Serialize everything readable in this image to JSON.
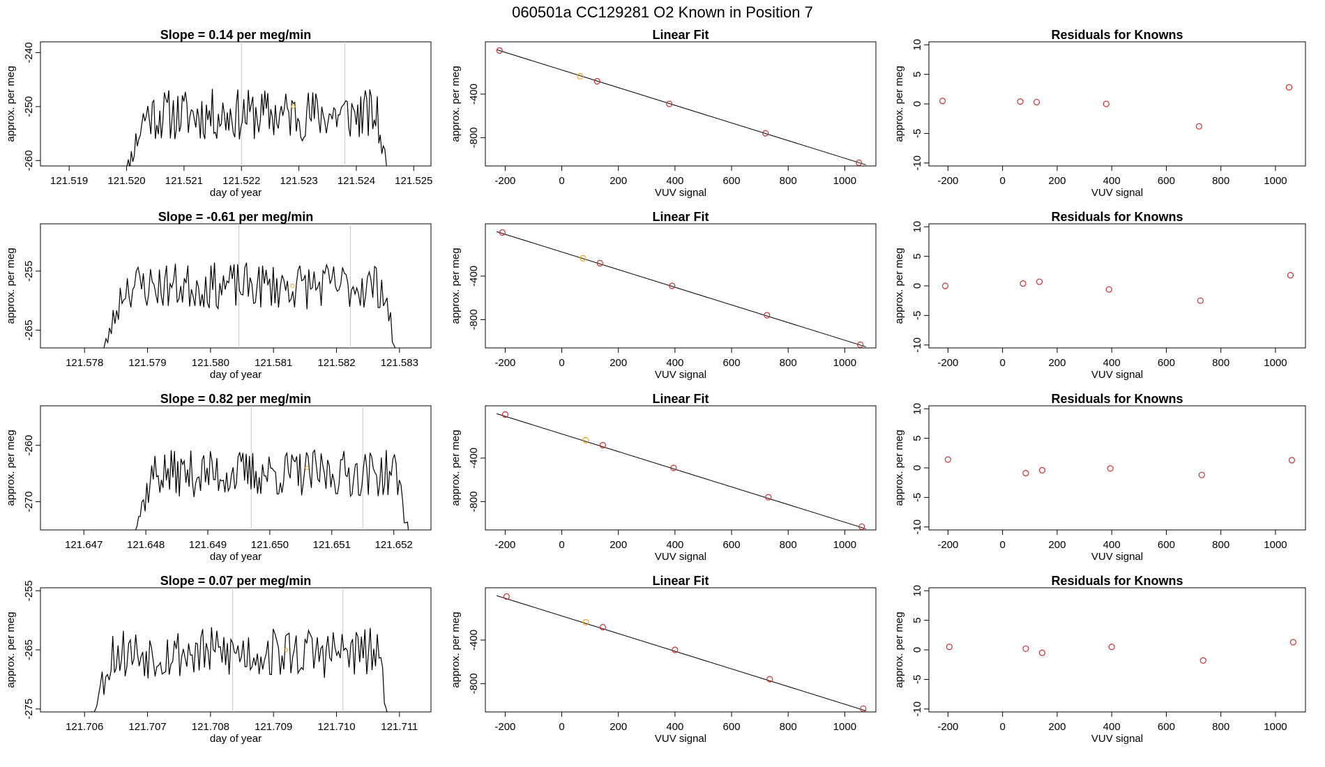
{
  "figure": {
    "title": "060501a      CC129281   O2 Known in Position  7",
    "colors": {
      "line": "#000000",
      "vline": "#c8c8c8",
      "highlight": "#f0a020",
      "residual": "#d03030",
      "frame": "#000000"
    }
  },
  "rows": [
    {
      "time": {
        "title": "Slope =  0.14  per meg/min",
        "xlabel": "day of year",
        "ylabel": "approx. per meg",
        "xlim": [
          121.5185,
          121.5253
        ],
        "ylim": [
          -261,
          -238
        ],
        "xticks": [
          121.519,
          121.52,
          121.521,
          121.522,
          121.523,
          121.524,
          121.525
        ],
        "xtick_labels": [
          "121.519",
          "121.520",
          "121.521",
          "121.522",
          "121.523",
          "121.524",
          "121.525"
        ],
        "yticks": [
          -240,
          -250,
          -260
        ],
        "ytick_labels": [
          "-240",
          "-250",
          "-260"
        ],
        "start": 121.5199,
        "end": 121.5246,
        "base": -251.5,
        "vlines": [
          121.522,
          121.5238
        ],
        "highlight": {
          "x": 121.5229,
          "y": -250
        },
        "seed": 11,
        "amp": 2.2,
        "n": 180
      },
      "fit": {
        "title": "Linear Fit",
        "xlabel": "VUV signal",
        "ylabel": "approx. per meg",
        "xlim": [
          -270,
          1110
        ],
        "ylim": [
          -1060,
          80
        ],
        "xticks": [
          -200,
          0,
          200,
          400,
          600,
          800,
          1000
        ],
        "xtick_labels": [
          "-200",
          "0",
          "200",
          "400",
          "600",
          "800",
          "1000"
        ],
        "yticks": [
          -400,
          -800
        ],
        "ytick_labels": [
          "-400",
          "-800"
        ],
        "points": [
          {
            "x": -220,
            "y": 0
          },
          {
            "x": 65,
            "y": -236
          },
          {
            "x": 125,
            "y": -282
          },
          {
            "x": 380,
            "y": -490
          },
          {
            "x": 720,
            "y": -760
          },
          {
            "x": 1050,
            "y": -1030
          }
        ],
        "highlight_index": 1,
        "line": {
          "x0": -230,
          "y0": 8,
          "x1": 1075,
          "y1": -1050
        }
      },
      "resid": {
        "title": "Residuals for Knowns",
        "xlabel": "VUV signal",
        "ylabel": "approx. per meg",
        "xlim": [
          -270,
          1110
        ],
        "ylim": [
          -10.5,
          10.5
        ],
        "xticks": [
          -200,
          0,
          200,
          400,
          600,
          800,
          1000
        ],
        "xtick_labels": [
          "-200",
          "0",
          "200",
          "400",
          "600",
          "800",
          "1000"
        ],
        "yticks": [
          10,
          5,
          0,
          -5,
          -10
        ],
        "ytick_labels": [
          "10",
          "5",
          "0",
          "-5",
          "-10"
        ],
        "points": [
          {
            "x": -220,
            "y": 0.5
          },
          {
            "x": 65,
            "y": 0.4
          },
          {
            "x": 125,
            "y": 0.3
          },
          {
            "x": 380,
            "y": 0.0
          },
          {
            "x": 720,
            "y": -3.8
          },
          {
            "x": 1050,
            "y": 2.8
          }
        ]
      }
    },
    {
      "time": {
        "title": "Slope =  -0.61  per meg/min",
        "xlabel": "day of year",
        "ylabel": "approx. per meg",
        "xlim": [
          121.5773,
          121.5835
        ],
        "ylim": [
          -268,
          -247
        ],
        "xticks": [
          121.578,
          121.579,
          121.58,
          121.581,
          121.582,
          121.583
        ],
        "xtick_labels": [
          "121.578",
          "121.579",
          "121.580",
          "121.581",
          "121.582",
          "121.583"
        ],
        "yticks": [
          -255,
          -265
        ],
        "ytick_labels": [
          "-255",
          "-265"
        ],
        "start": 121.5782,
        "end": 121.583,
        "base": -257.5,
        "vlines": [
          121.58045,
          121.58222
        ],
        "highlight": {
          "x": 121.5813,
          "y": -257.5
        },
        "seed": 23,
        "amp": 1.8,
        "n": 170
      },
      "fit": {
        "title": "Linear Fit",
        "xlabel": "VUV signal",
        "ylabel": "approx. per meg",
        "xlim": [
          -270,
          1110
        ],
        "ylim": [
          -1060,
          80
        ],
        "xticks": [
          -200,
          0,
          200,
          400,
          600,
          800,
          1000
        ],
        "xtick_labels": [
          "-200",
          "0",
          "200",
          "400",
          "600",
          "800",
          "1000"
        ],
        "yticks": [
          -400,
          -800
        ],
        "ytick_labels": [
          "-400",
          "-800"
        ],
        "points": [
          {
            "x": -210,
            "y": 0
          },
          {
            "x": 75,
            "y": -236
          },
          {
            "x": 135,
            "y": -282
          },
          {
            "x": 390,
            "y": -490
          },
          {
            "x": 725,
            "y": -760
          },
          {
            "x": 1055,
            "y": -1030
          }
        ],
        "highlight_index": 1,
        "line": {
          "x0": -230,
          "y0": 8,
          "x1": 1075,
          "y1": -1050
        }
      },
      "resid": {
        "title": "Residuals for Knowns",
        "xlabel": "VUV signal",
        "ylabel": "approx. per meg",
        "xlim": [
          -270,
          1110
        ],
        "ylim": [
          -10.5,
          10.5
        ],
        "xticks": [
          -200,
          0,
          200,
          400,
          600,
          800,
          1000
        ],
        "xtick_labels": [
          "-200",
          "0",
          "200",
          "400",
          "600",
          "800",
          "1000"
        ],
        "yticks": [
          10,
          5,
          0,
          -5,
          -10
        ],
        "ytick_labels": [
          "10",
          "5",
          "0",
          "-5",
          "-10"
        ],
        "points": [
          {
            "x": -210,
            "y": 0.0
          },
          {
            "x": 75,
            "y": 0.4
          },
          {
            "x": 135,
            "y": 0.7
          },
          {
            "x": 390,
            "y": -0.6
          },
          {
            "x": 725,
            "y": -2.5
          },
          {
            "x": 1055,
            "y": 1.8
          }
        ]
      }
    },
    {
      "time": {
        "title": "Slope =  0.82  per meg/min",
        "xlabel": "day of year",
        "ylabel": "approx. per meg",
        "xlim": [
          121.6463,
          121.6526
        ],
        "ylim": [
          -275,
          -253
        ],
        "xticks": [
          121.647,
          121.648,
          121.649,
          121.65,
          121.651,
          121.652
        ],
        "xtick_labels": [
          "121.647",
          "121.648",
          "121.649",
          "121.650",
          "121.651",
          "121.652"
        ],
        "yticks": [
          -260,
          -270
        ],
        "ytick_labels": [
          "-260",
          "-270"
        ],
        "start": 121.6477,
        "end": 121.6523,
        "base": -265,
        "vlines": [
          121.6497,
          121.6515
        ],
        "highlight": {
          "x": 121.6506,
          "y": -264
        },
        "seed": 37,
        "amp": 1.9,
        "n": 175
      },
      "fit": {
        "title": "Linear Fit",
        "xlabel": "VUV signal",
        "ylabel": "approx. per meg",
        "xlim": [
          -270,
          1110
        ],
        "ylim": [
          -1060,
          80
        ],
        "xticks": [
          -200,
          0,
          200,
          400,
          600,
          800,
          1000
        ],
        "xtick_labels": [
          "-200",
          "0",
          "200",
          "400",
          "600",
          "800",
          "1000"
        ],
        "yticks": [
          -400,
          -800
        ],
        "ytick_labels": [
          "-400",
          "-800"
        ],
        "points": [
          {
            "x": -200,
            "y": 0
          },
          {
            "x": 85,
            "y": -236
          },
          {
            "x": 145,
            "y": -282
          },
          {
            "x": 395,
            "y": -490
          },
          {
            "x": 730,
            "y": -760
          },
          {
            "x": 1060,
            "y": -1030
          }
        ],
        "highlight_index": 1,
        "line": {
          "x0": -230,
          "y0": 8,
          "x1": 1075,
          "y1": -1050
        }
      },
      "resid": {
        "title": "Residuals for Knowns",
        "xlabel": "VUV signal",
        "ylabel": "approx. per meg",
        "xlim": [
          -270,
          1110
        ],
        "ylim": [
          -10.5,
          10.5
        ],
        "xticks": [
          -200,
          0,
          200,
          400,
          600,
          800,
          1000
        ],
        "xtick_labels": [
          "-200",
          "0",
          "200",
          "400",
          "600",
          "800",
          "1000"
        ],
        "yticks": [
          10,
          5,
          0,
          -5,
          -10
        ],
        "ytick_labels": [
          "10",
          "5",
          "0",
          "-5",
          "-10"
        ],
        "points": [
          {
            "x": -200,
            "y": 1.4
          },
          {
            "x": 85,
            "y": -0.9
          },
          {
            "x": 145,
            "y": -0.4
          },
          {
            "x": 395,
            "y": -0.1
          },
          {
            "x": 730,
            "y": -1.2
          },
          {
            "x": 1060,
            "y": 1.3
          }
        ]
      }
    },
    {
      "time": {
        "title": "Slope =  0.07  per meg/min",
        "xlabel": "day of year",
        "ylabel": "approx. per meg",
        "xlim": [
          121.7053,
          121.7115
        ],
        "ylim": [
          -275.5,
          -254.5
        ],
        "xticks": [
          121.706,
          121.707,
          121.708,
          121.709,
          121.71,
          121.711
        ],
        "xtick_labels": [
          "121.706",
          "121.707",
          "121.708",
          "121.709",
          "121.710",
          "121.711"
        ],
        "yticks": [
          -255,
          -265,
          -275
        ],
        "ytick_labels": [
          "-255",
          "-265",
          "-275"
        ],
        "start": 121.706,
        "end": 121.7109,
        "base": -265.5,
        "vlines": [
          121.70835,
          121.7101
        ],
        "highlight": {
          "x": 121.7092,
          "y": -265
        },
        "seed": 53,
        "amp": 2.0,
        "n": 175
      },
      "fit": {
        "title": "Linear Fit",
        "xlabel": "VUV signal",
        "ylabel": "approx. per meg",
        "xlim": [
          -270,
          1110
        ],
        "ylim": [
          -1060,
          80
        ],
        "xticks": [
          -200,
          0,
          200,
          400,
          600,
          800,
          1000
        ],
        "xtick_labels": [
          "-200",
          "0",
          "200",
          "400",
          "600",
          "800",
          "1000"
        ],
        "yticks": [
          -400,
          -800
        ],
        "ytick_labels": [
          "-400",
          "-800"
        ],
        "points": [
          {
            "x": -195,
            "y": 0
          },
          {
            "x": 85,
            "y": -236
          },
          {
            "x": 145,
            "y": -282
          },
          {
            "x": 400,
            "y": -490
          },
          {
            "x": 735,
            "y": -760
          },
          {
            "x": 1065,
            "y": -1030
          }
        ],
        "highlight_index": 1,
        "line": {
          "x0": -230,
          "y0": 8,
          "x1": 1075,
          "y1": -1050
        }
      },
      "resid": {
        "title": "Residuals for Knowns",
        "xlabel": "VUV signal",
        "ylabel": "approx. per meg",
        "xlim": [
          -270,
          1110
        ],
        "ylim": [
          -10.5,
          10.5
        ],
        "xticks": [
          -200,
          0,
          200,
          400,
          600,
          800,
          1000
        ],
        "xtick_labels": [
          "-200",
          "0",
          "200",
          "400",
          "600",
          "800",
          "1000"
        ],
        "yticks": [
          10,
          5,
          0,
          -5,
          -10
        ],
        "ytick_labels": [
          "10",
          "5",
          "0",
          "-5",
          "-10"
        ],
        "points": [
          {
            "x": -195,
            "y": 0.5
          },
          {
            "x": 85,
            "y": 0.2
          },
          {
            "x": 145,
            "y": -0.5
          },
          {
            "x": 400,
            "y": 0.5
          },
          {
            "x": 735,
            "y": -1.8
          },
          {
            "x": 1065,
            "y": 1.3
          }
        ]
      }
    }
  ],
  "chart_data": [
    {
      "type": "line",
      "title": "Slope =  0.14  per meg/min",
      "xlabel": "day of year",
      "ylabel": "approx. per meg",
      "xlim": [
        121.5185,
        121.5253
      ],
      "ylim": [
        -261,
        -238
      ]
    },
    {
      "type": "scatter",
      "title": "Linear Fit",
      "xlabel": "VUV signal",
      "ylabel": "approx. per meg",
      "x": [
        -220,
        65,
        125,
        380,
        720,
        1050
      ],
      "y": [
        0,
        -236,
        -282,
        -490,
        -760,
        -1030
      ]
    },
    {
      "type": "scatter",
      "title": "Residuals for Knowns",
      "xlabel": "VUV signal",
      "ylabel": "approx. per meg",
      "x": [
        -220,
        65,
        125,
        380,
        720,
        1050
      ],
      "y": [
        0.5,
        0.4,
        0.3,
        0.0,
        -3.8,
        2.8
      ]
    },
    {
      "type": "line",
      "title": "Slope =  -0.61  per meg/min",
      "xlabel": "day of year",
      "ylabel": "approx. per meg",
      "xlim": [
        121.5773,
        121.5835
      ],
      "ylim": [
        -268,
        -247
      ]
    },
    {
      "type": "scatter",
      "title": "Linear Fit",
      "xlabel": "VUV signal",
      "ylabel": "approx. per meg",
      "x": [
        -210,
        75,
        135,
        390,
        725,
        1055
      ],
      "y": [
        0,
        -236,
        -282,
        -490,
        -760,
        -1030
      ]
    },
    {
      "type": "scatter",
      "title": "Residuals for Knowns",
      "xlabel": "VUV signal",
      "ylabel": "approx. per meg",
      "x": [
        -210,
        75,
        135,
        390,
        725,
        1055
      ],
      "y": [
        0.0,
        0.4,
        0.7,
        -0.6,
        -2.5,
        1.8
      ]
    },
    {
      "type": "line",
      "title": "Slope =  0.82  per meg/min",
      "xlabel": "day of year",
      "ylabel": "approx. per meg",
      "xlim": [
        121.6463,
        121.6526
      ],
      "ylim": [
        -275,
        -253
      ]
    },
    {
      "type": "scatter",
      "title": "Linear Fit",
      "xlabel": "VUV signal",
      "ylabel": "approx. per meg",
      "x": [
        -200,
        85,
        145,
        395,
        730,
        1060
      ],
      "y": [
        0,
        -236,
        -282,
        -490,
        -760,
        -1030
      ]
    },
    {
      "type": "scatter",
      "title": "Residuals for Knowns",
      "xlabel": "VUV signal",
      "ylabel": "approx. per meg",
      "x": [
        -200,
        85,
        145,
        395,
        730,
        1060
      ],
      "y": [
        1.4,
        -0.9,
        -0.4,
        -0.1,
        -1.2,
        1.3
      ]
    },
    {
      "type": "line",
      "title": "Slope =  0.07  per meg/min",
      "xlabel": "day of year",
      "ylabel": "approx. per meg",
      "xlim": [
        121.7053,
        121.7115
      ],
      "ylim": [
        -275.5,
        -254.5
      ]
    },
    {
      "type": "scatter",
      "title": "Linear Fit",
      "xlabel": "VUV signal",
      "ylabel": "approx. per meg",
      "x": [
        -195,
        85,
        145,
        400,
        735,
        1065
      ],
      "y": [
        0,
        -236,
        -282,
        -490,
        -760,
        -1030
      ]
    },
    {
      "type": "scatter",
      "title": "Residuals for Knowns",
      "xlabel": "VUV signal",
      "ylabel": "approx. per meg",
      "x": [
        -195,
        85,
        145,
        400,
        735,
        1065
      ],
      "y": [
        0.5,
        0.2,
        -0.5,
        0.5,
        -1.8,
        1.3
      ]
    }
  ]
}
